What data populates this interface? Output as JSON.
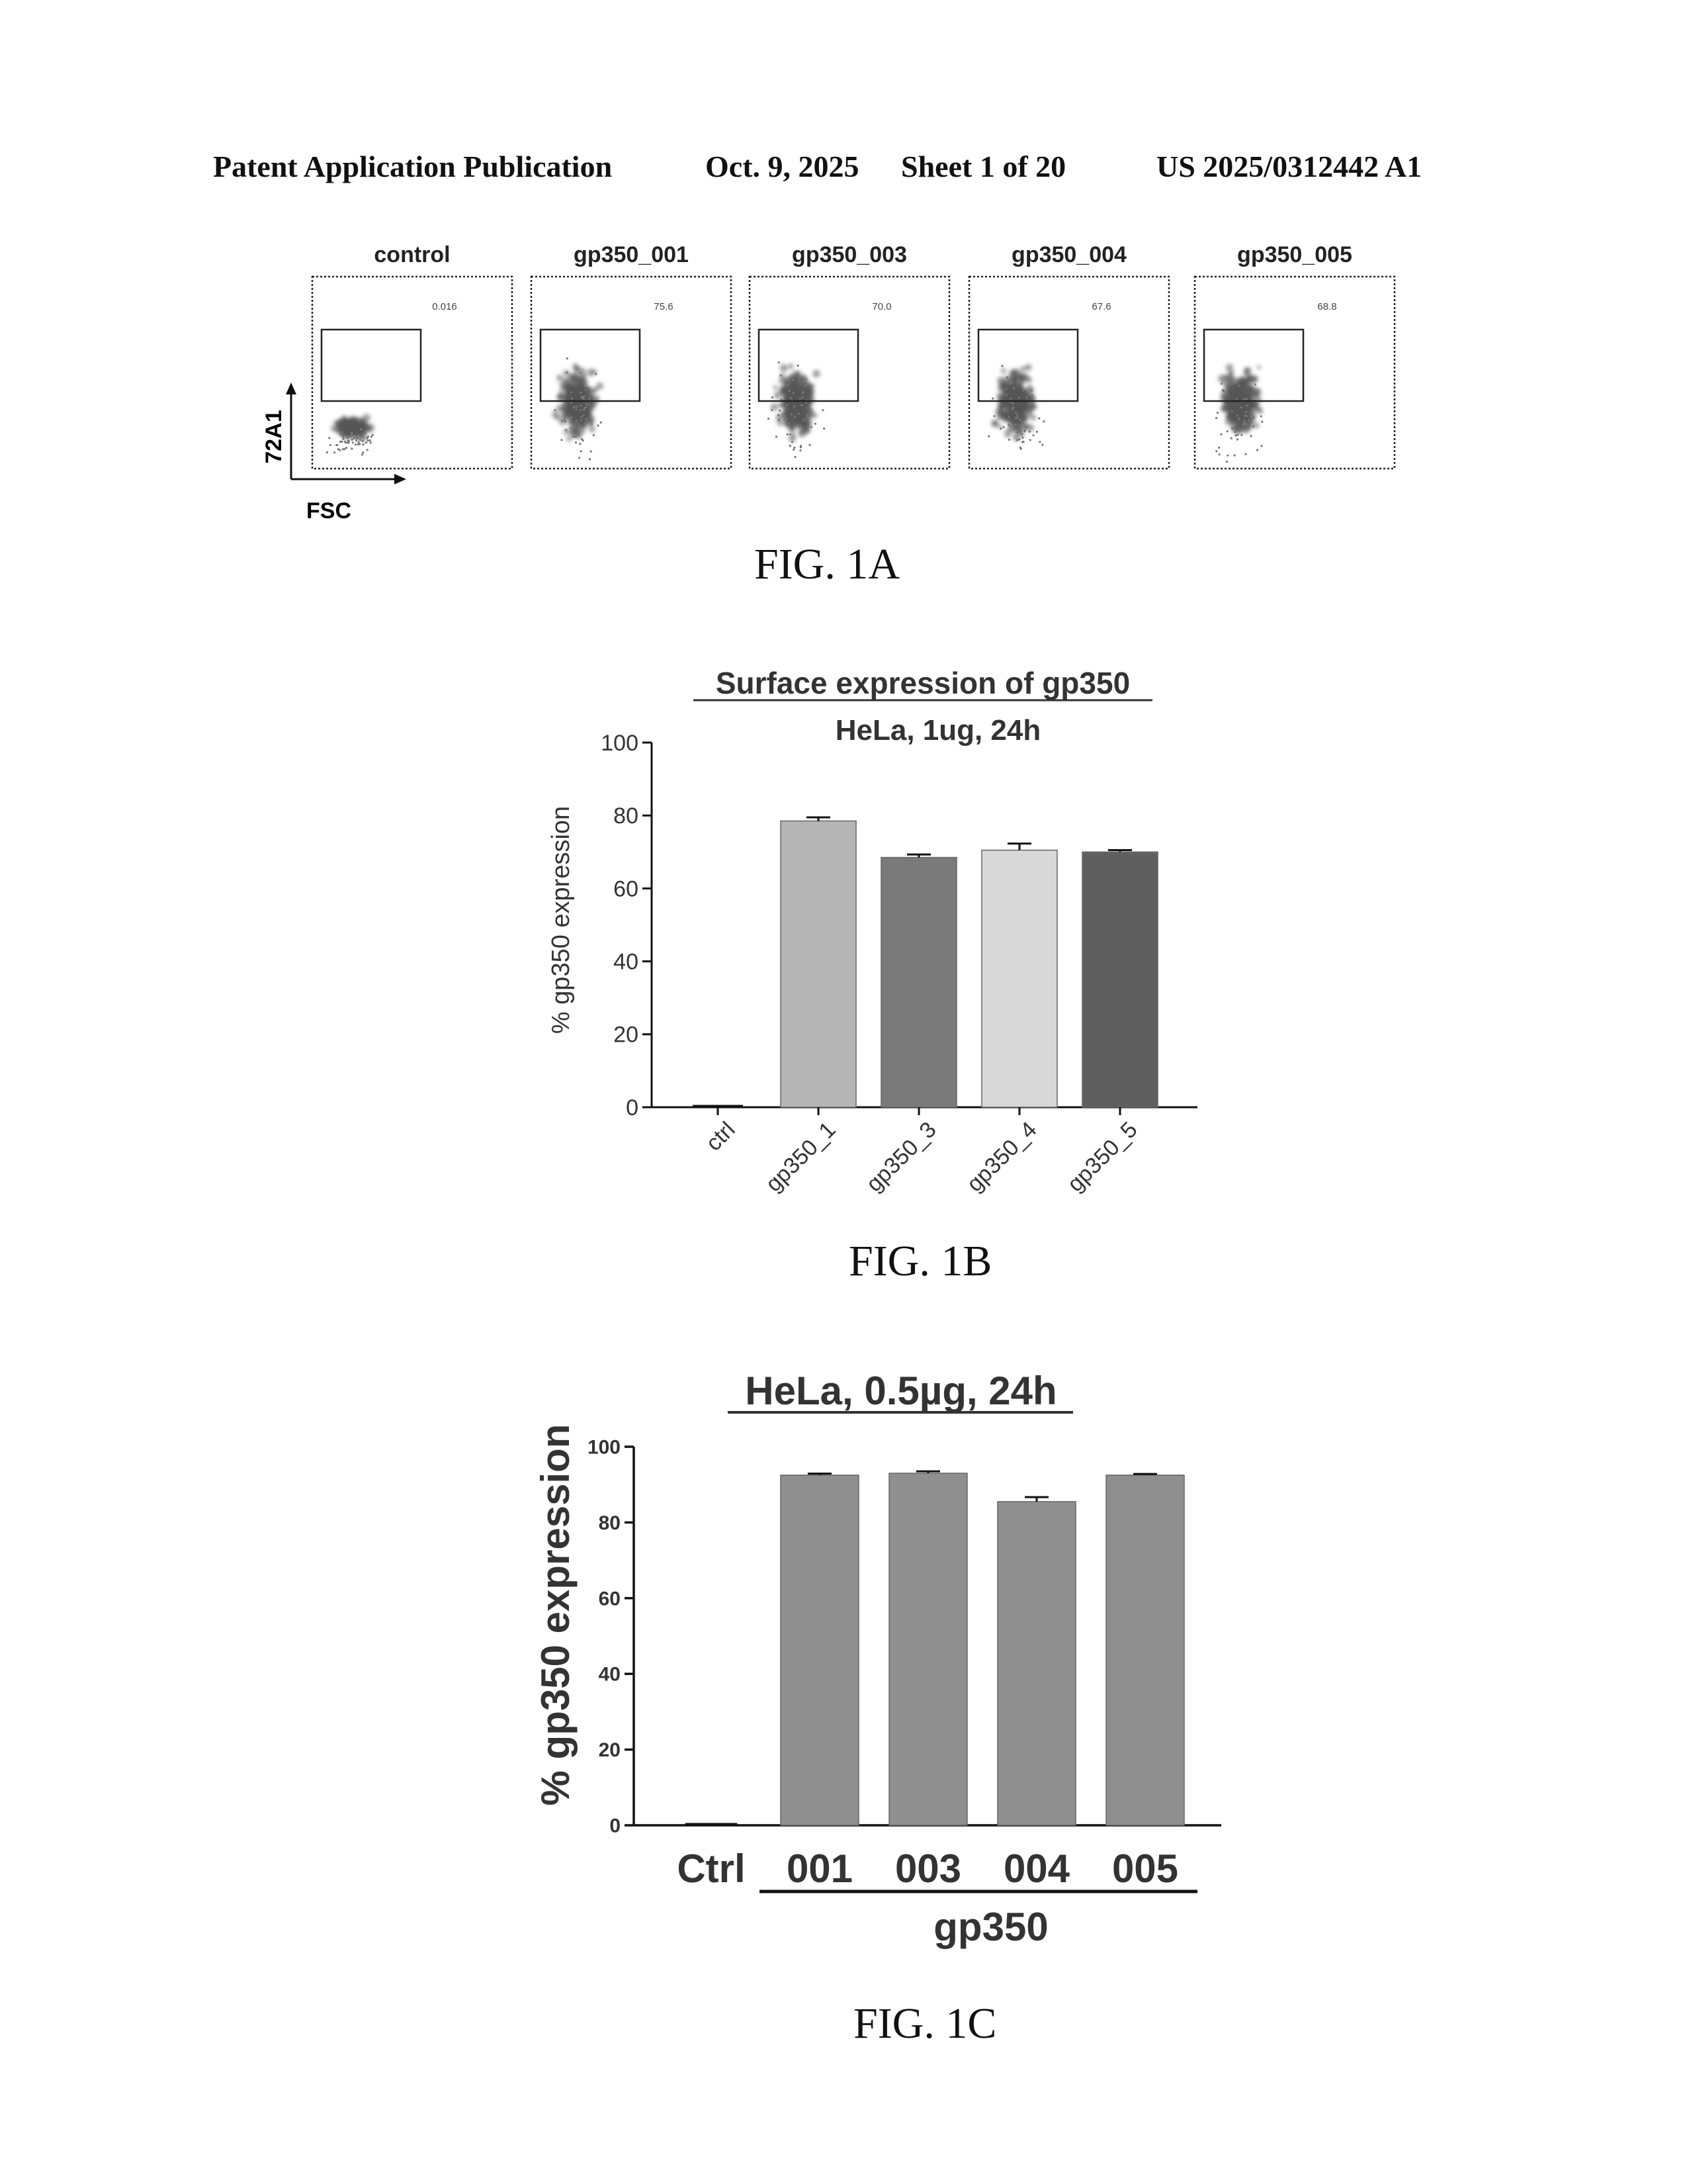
{
  "header": {
    "left": "Patent Application Publication",
    "date": "Oct. 9, 2025",
    "sheet": "Sheet 1 of 20",
    "number": "US 2025/0312442 A1"
  },
  "fig1a": {
    "label": "FIG. 1A",
    "y_axis": "72A1",
    "x_axis": "FSC",
    "panels": [
      {
        "title": "control",
        "gate_value": "0.016"
      },
      {
        "title": "gp350_001",
        "gate_value": "75.6"
      },
      {
        "title": "gp350_003",
        "gate_value": "70.0"
      },
      {
        "title": "gp350_004",
        "gate_value": "67.6"
      },
      {
        "title": "gp350_005",
        "gate_value": "68.8"
      }
    ]
  },
  "fig1b": {
    "label": "FIG. 1B",
    "chart_data": {
      "type": "bar",
      "title": "Surface expression of gp350",
      "subtitle": "HeLa, 1ug, 24h",
      "ylabel": "% gp350 expression",
      "ylim": [
        0,
        100
      ],
      "yticks": [
        "0",
        "20",
        "40",
        "60",
        "80",
        "100"
      ],
      "categories": [
        "ctrl",
        "gp350_1",
        "gp350_3",
        "gp350_4",
        "gp350_5"
      ],
      "values": [
        0,
        78.5,
        68.5,
        70.5,
        70.0
      ],
      "errors": [
        0,
        1.0,
        0.8,
        1.8,
        0.5
      ],
      "bar_colors": [
        "#ffffff",
        "#b5b5b5",
        "#7a7a7a",
        "#d8d8d8",
        "#5f5f5f"
      ],
      "grid": false,
      "error_bars": true
    }
  },
  "fig1c": {
    "label": "FIG. 1C",
    "chart_data": {
      "type": "bar",
      "title": "HeLa, 0.5µg, 24h",
      "ylabel": "% gp350 expression",
      "ylim": [
        0,
        100
      ],
      "yticks": [
        "0",
        "20",
        "40",
        "60",
        "80",
        "100"
      ],
      "categories": [
        "Ctrl",
        "001",
        "003",
        "004",
        "005"
      ],
      "group_label": "gp350",
      "values": [
        0,
        92.5,
        93.0,
        85.5,
        92.5
      ],
      "errors": [
        0,
        0.4,
        0.5,
        1.2,
        0.3
      ],
      "bar_color": "#8f8f8f",
      "grid": false,
      "error_bars": true
    }
  }
}
